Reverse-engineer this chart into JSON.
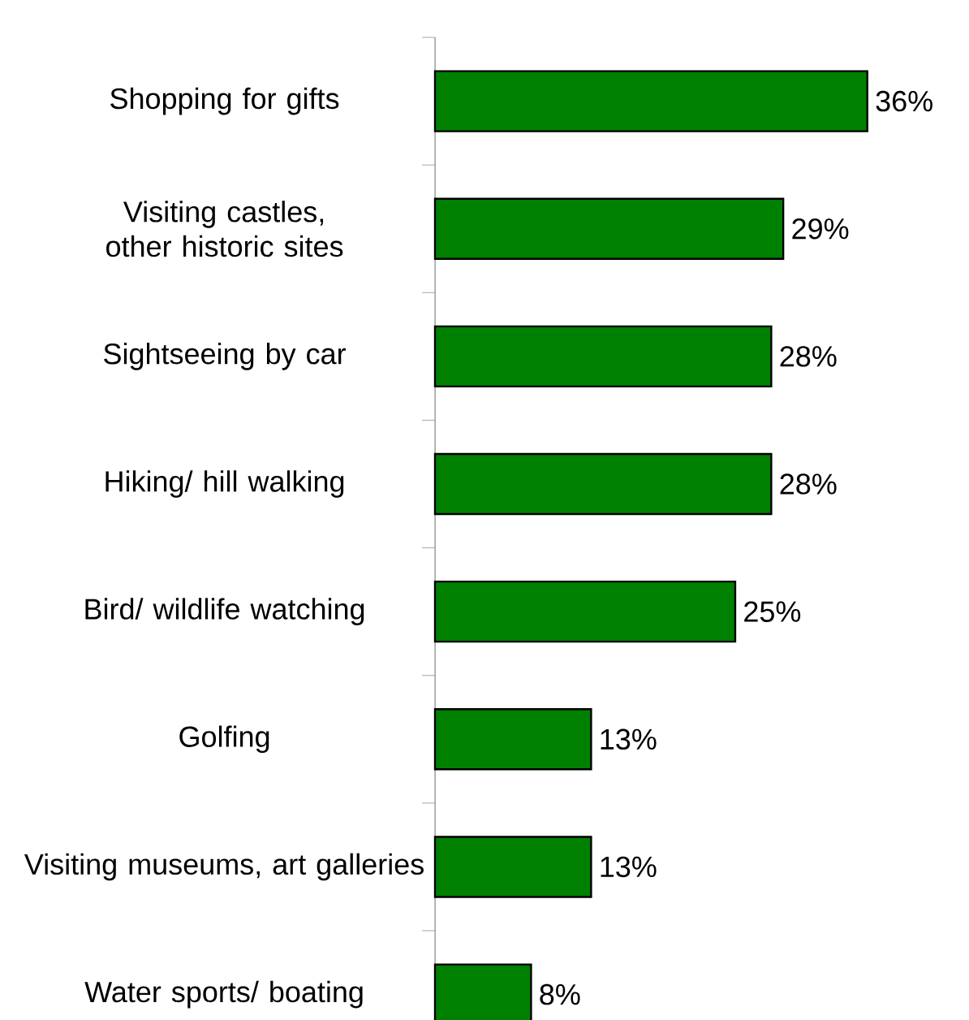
{
  "chart_data": {
    "type": "bar",
    "orientation": "horizontal",
    "color": "#008000",
    "categories": [
      "Shopping for gifts",
      "Visiting castles, other historic sites",
      "Sightseeing by car",
      "Hiking/ hill walking",
      "Bird/ wildlife watching",
      "Golfing",
      "Visiting museums, art galleries",
      "Water sports/ boating"
    ],
    "values": [
      36,
      29,
      28,
      28,
      25,
      13,
      13,
      8
    ],
    "value_labels": [
      "36%",
      "29%",
      "28%",
      "28%",
      "25%",
      "13%",
      "13%",
      "8%"
    ]
  }
}
